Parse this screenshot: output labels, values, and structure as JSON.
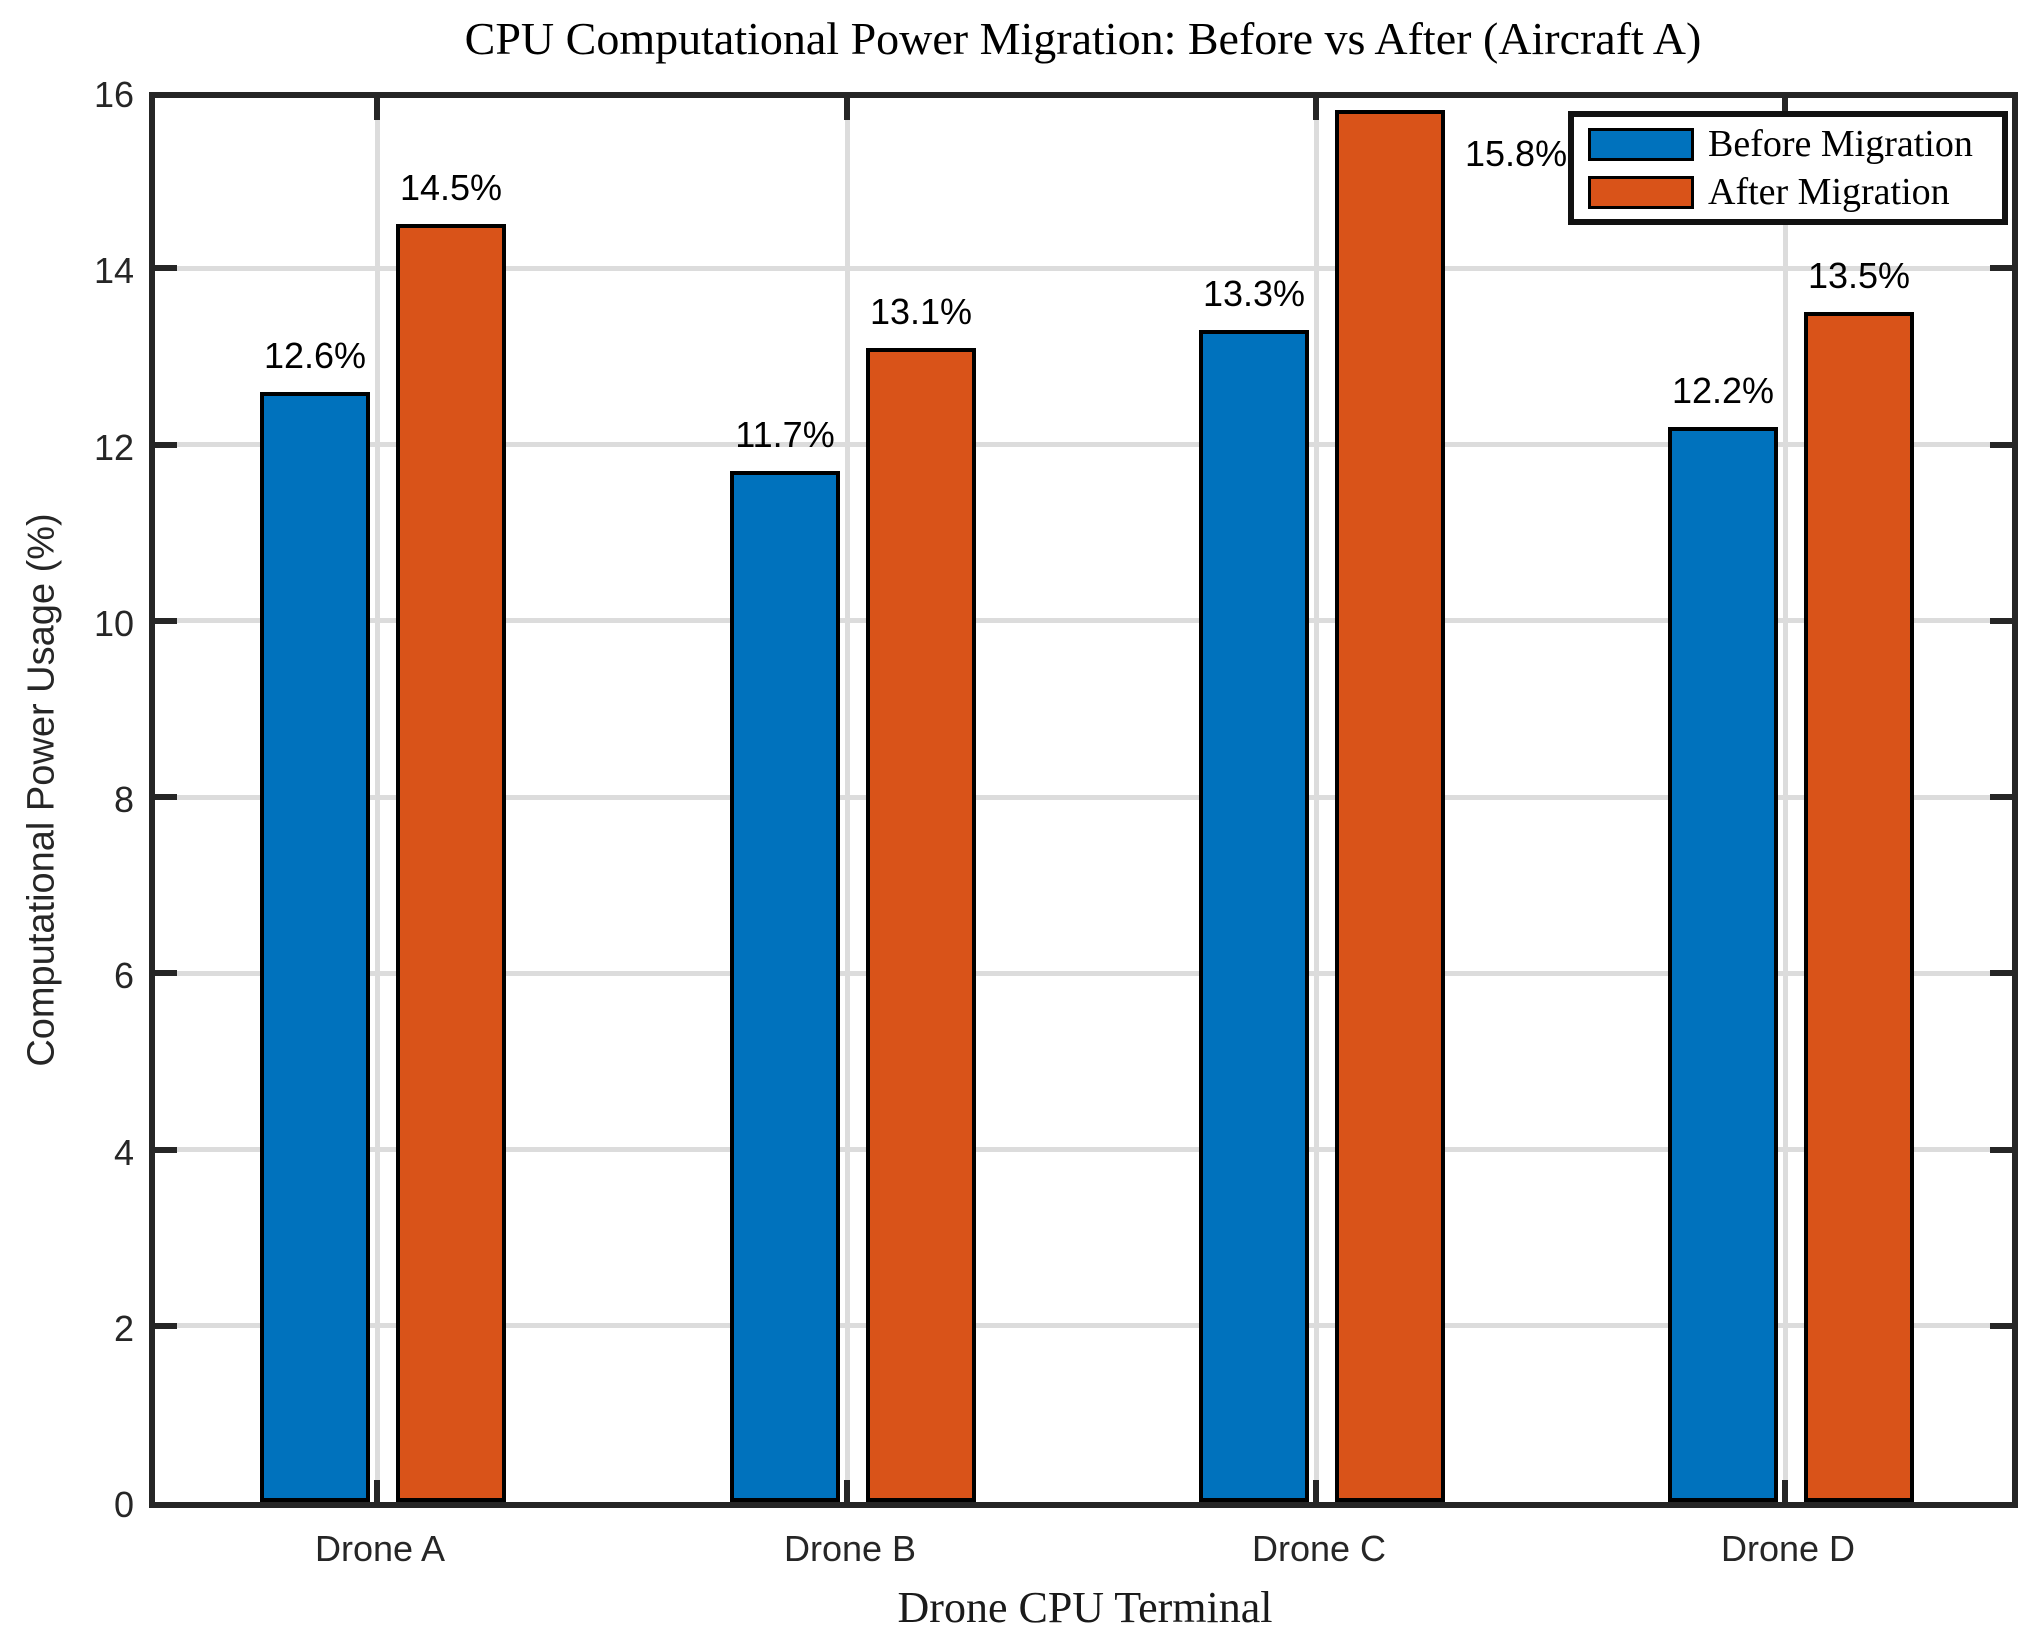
{
  "title": "CPU Computational Power Migration: Before vs After (Aircraft A)",
  "chart_data": {
    "type": "bar",
    "title": "CPU Computational Power Migration: Before vs After (Aircraft A)",
    "categories": [
      "Drone A",
      "Drone B",
      "Drone C",
      "Drone D"
    ],
    "series": [
      {
        "name": "Before Migration",
        "color": "#0072BD",
        "values": [
          12.6,
          11.7,
          13.3,
          12.2
        ],
        "value_labels": [
          "12.6%",
          "11.7%",
          "13.3%",
          "12.2%"
        ]
      },
      {
        "name": "After Migration",
        "color": "#D95319",
        "values": [
          14.5,
          13.1,
          15.8,
          13.5
        ],
        "value_labels": [
          "14.5%",
          "13.1%",
          "15.8%",
          "13.5%"
        ]
      }
    ],
    "xlabel": "Drone CPU Terminal",
    "ylabel": "Computational Power Usage (%)",
    "ylim": [
      0,
      16
    ],
    "ytick_labels": [
      "0",
      "2",
      "4",
      "6",
      "8",
      "10",
      "12",
      "14",
      "16"
    ],
    "ytick_values": [
      0,
      2,
      4,
      6,
      8,
      10,
      12,
      14,
      16
    ],
    "grid": true,
    "legend_position": "top-right"
  },
  "colors": {
    "before_bar": "#0072BD",
    "after_bar": "#D95319",
    "axis": "#262626",
    "grid": "#dcdcdc",
    "bar_outline": "#000000",
    "background": "#ffffff"
  }
}
